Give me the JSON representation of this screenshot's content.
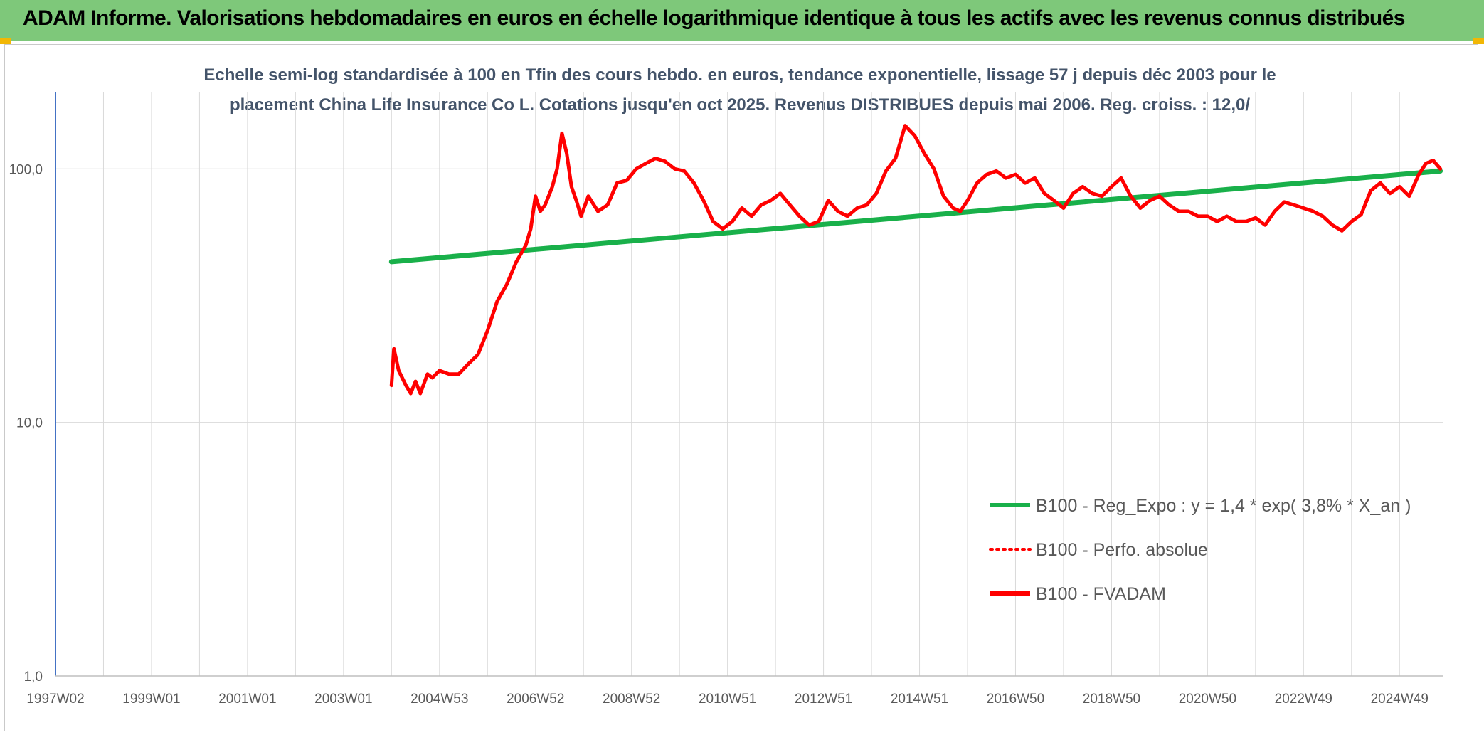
{
  "header": {
    "title": "ADAM Informe. Valorisations hebdomadaires en euros en échelle logarithmique identique à tous les actifs avec les revenus connus distribués"
  },
  "colors": {
    "header_bg": "#7ec87a",
    "accent": "#f2b705",
    "trend": "#19b04a",
    "perf": "#ff0000",
    "fvadam": "#ff0000",
    "axis": "#4472c4",
    "grid": "#d9d9d9"
  },
  "chart_data": {
    "type": "line",
    "title_lines": [
      "Echelle semi-log standardisée à 100 en Tfin des cours hebdo. en euros, tendance exponentielle, lissage 57 j depuis déc 2003 pour le",
      "placement China Life Insurance Co L. Cotations jusqu'en oct 2025. Revenus DISTRIBUES depuis mai 2006. Reg. croiss. : 12,0/"
    ],
    "y_scale": "log",
    "ylim": [
      1,
      200
    ],
    "xlim": [
      1997.0,
      2025.9
    ],
    "y_ticks": [
      {
        "value": 1,
        "label": "1,0"
      },
      {
        "value": 10,
        "label": "10,0"
      },
      {
        "value": 100,
        "label": "100,0"
      }
    ],
    "x_ticks": [
      {
        "value": 1997.0,
        "label": "1997W02"
      },
      {
        "value": 1999.0,
        "label": "1999W01"
      },
      {
        "value": 2001.0,
        "label": "2001W01"
      },
      {
        "value": 2003.0,
        "label": "2003W01"
      },
      {
        "value": 2005.0,
        "label": "2004W53"
      },
      {
        "value": 2007.0,
        "label": "2006W52"
      },
      {
        "value": 2009.0,
        "label": "2008W52"
      },
      {
        "value": 2011.0,
        "label": "2010W51"
      },
      {
        "value": 2013.0,
        "label": "2012W51"
      },
      {
        "value": 2015.0,
        "label": "2014W51"
      },
      {
        "value": 2017.0,
        "label": "2016W50"
      },
      {
        "value": 2019.0,
        "label": "2018W50"
      },
      {
        "value": 2021.0,
        "label": "2020W50"
      },
      {
        "value": 2023.0,
        "label": "2022W49"
      },
      {
        "value": 2025.0,
        "label": "2024W49"
      }
    ],
    "grid": true,
    "legend_position": "lower-right",
    "series": [
      {
        "name": "B100 - Reg_Expo : y = 1,4 * exp( 3,8% *  X_an )",
        "style": "solid-green",
        "x": [
          2004.0,
          2025.85
        ],
        "y": [
          43,
          98
        ]
      },
      {
        "name": "B100 - Perfo. absolue",
        "style": "dotted-red",
        "x": [],
        "y": []
      },
      {
        "name": "B100 - FVADAM",
        "style": "solid-red",
        "x": [
          2004.0,
          2004.05,
          2004.15,
          2004.3,
          2004.4,
          2004.5,
          2004.6,
          2004.75,
          2004.85,
          2005.0,
          2005.2,
          2005.4,
          2005.6,
          2005.8,
          2006.0,
          2006.2,
          2006.4,
          2006.6,
          2006.8,
          2006.9,
          2007.0,
          2007.1,
          2007.2,
          2007.35,
          2007.45,
          2007.55,
          2007.65,
          2007.75,
          2007.85,
          2007.95,
          2008.1,
          2008.3,
          2008.5,
          2008.7,
          2008.9,
          2009.1,
          2009.3,
          2009.5,
          2009.7,
          2009.9,
          2010.1,
          2010.3,
          2010.5,
          2010.7,
          2010.9,
          2011.1,
          2011.3,
          2011.5,
          2011.7,
          2011.9,
          2012.1,
          2012.3,
          2012.5,
          2012.7,
          2012.9,
          2013.1,
          2013.3,
          2013.5,
          2013.7,
          2013.9,
          2014.1,
          2014.3,
          2014.5,
          2014.7,
          2014.9,
          2015.1,
          2015.3,
          2015.5,
          2015.7,
          2015.85,
          2016.0,
          2016.2,
          2016.4,
          2016.6,
          2016.8,
          2017.0,
          2017.2,
          2017.4,
          2017.6,
          2017.8,
          2018.0,
          2018.2,
          2018.4,
          2018.6,
          2018.8,
          2019.0,
          2019.2,
          2019.4,
          2019.6,
          2019.8,
          2020.0,
          2020.2,
          2020.4,
          2020.6,
          2020.8,
          2021.0,
          2021.2,
          2021.4,
          2021.6,
          2021.8,
          2022.0,
          2022.2,
          2022.4,
          2022.6,
          2022.8,
          2023.0,
          2023.2,
          2023.4,
          2023.6,
          2023.8,
          2024.0,
          2024.2,
          2024.4,
          2024.6,
          2024.8,
          2025.0,
          2025.2,
          2025.4,
          2025.55,
          2025.7,
          2025.85
        ],
        "y": [
          14,
          19.5,
          16,
          14,
          13,
          14.5,
          13,
          15.5,
          15,
          16,
          15.5,
          15.5,
          17,
          18.5,
          23,
          30,
          35,
          43,
          50,
          58,
          78,
          68,
          72,
          85,
          100,
          138,
          115,
          85,
          75,
          65,
          78,
          68,
          72,
          88,
          90,
          100,
          105,
          110,
          107,
          100,
          98,
          88,
          75,
          62,
          58,
          62,
          70,
          65,
          72,
          75,
          80,
          72,
          65,
          60,
          62,
          75,
          68,
          65,
          70,
          72,
          80,
          98,
          110,
          148,
          135,
          115,
          100,
          78,
          70,
          68,
          75,
          88,
          95,
          98,
          92,
          95,
          88,
          92,
          80,
          75,
          70,
          80,
          85,
          80,
          78,
          85,
          92,
          78,
          70,
          75,
          78,
          72,
          68,
          68,
          65,
          65,
          62,
          65,
          62,
          62,
          64,
          60,
          68,
          74,
          72,
          70,
          68,
          65,
          60,
          57,
          62,
          66,
          82,
          88,
          80,
          85,
          78,
          95,
          105,
          108,
          100
        ]
      }
    ]
  }
}
